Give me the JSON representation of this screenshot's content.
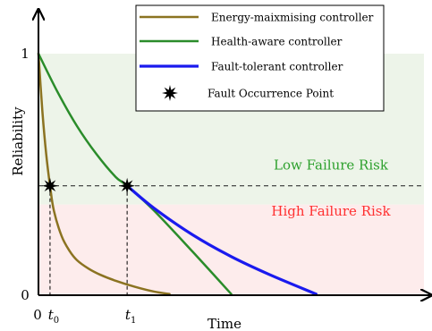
{
  "chart_data": {
    "type": "line",
    "xlabel": "Time",
    "ylabel": "Reliability",
    "xlim": [
      0,
      10
    ],
    "ylim": [
      0,
      1
    ],
    "x_ticks": [
      {
        "value": 0,
        "label": "0"
      },
      {
        "value": 0.3,
        "label": "t",
        "sub": "0"
      },
      {
        "value": 2.3,
        "label": "t",
        "sub": "1"
      }
    ],
    "y_ticks": [
      {
        "value": 0,
        "label": "0"
      },
      {
        "value": 1,
        "label": "1"
      }
    ],
    "threshold": 0.453,
    "regions": [
      {
        "name": "Low Failure Risk",
        "from": 0.375,
        "to": 1.0,
        "fill": "#edf4e9",
        "label_color": "#2ca02c",
        "label_y": 0.52
      },
      {
        "name": "High Failure Risk",
        "from": 0.0,
        "to": 0.375,
        "fill": "#fdecec",
        "label_color": "#ff3030",
        "label_y": 0.33
      }
    ],
    "series": [
      {
        "name": "Energy-maixmising controller",
        "color": "#8b7321",
        "width": 2.5,
        "x": [
          0,
          0.1,
          0.2,
          0.3,
          0.4,
          0.6,
          0.8,
          1.0,
          1.3,
          1.6,
          2.0,
          2.5,
          3.0,
          3.4
        ],
        "y": [
          1.0,
          0.765,
          0.585,
          0.453,
          0.35,
          0.245,
          0.185,
          0.145,
          0.11,
          0.085,
          0.06,
          0.035,
          0.015,
          0.005
        ]
      },
      {
        "name": "Health-aware controller",
        "color": "#2a8c2a",
        "width": 2.5,
        "x": [
          0,
          0.5,
          1.0,
          1.5,
          2.0,
          2.3,
          3.0,
          4.0,
          5.0
        ],
        "y": [
          1.0,
          0.84,
          0.7,
          0.585,
          0.49,
          0.453,
          0.35,
          0.18,
          0.005
        ]
      },
      {
        "name": "Fault-tolerant controller",
        "color": "#1a1aee",
        "width": 3.2,
        "x": [
          2.3,
          3.0,
          4.0,
          5.0,
          6.0,
          7.2
        ],
        "y": [
          0.453,
          0.36,
          0.25,
          0.16,
          0.085,
          0.005
        ]
      }
    ],
    "fault_points": [
      {
        "x": 0.3,
        "y": 0.453
      },
      {
        "x": 2.3,
        "y": 0.453
      }
    ],
    "legend": {
      "placement": "top-right",
      "entries": [
        {
          "label": "Energy-maixmising controller",
          "color": "#8b7321",
          "kind": "line"
        },
        {
          "label": "Health-aware controller",
          "color": "#2a8c2a",
          "kind": "line"
        },
        {
          "label": "Fault-tolerant controller",
          "color": "#1a1aee",
          "kind": "line"
        },
        {
          "label": "Fault Occurrence Point",
          "color": "#000000",
          "kind": "star"
        }
      ]
    }
  }
}
